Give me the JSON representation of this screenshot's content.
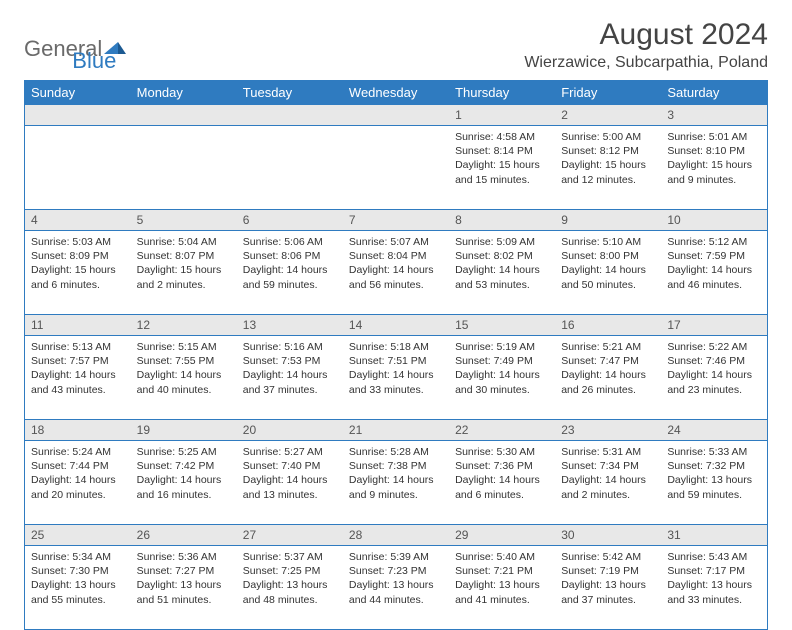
{
  "logo": {
    "general": "General",
    "blue": "Blue"
  },
  "title": "August 2024",
  "location": "Wierzawice, Subcarpathia, Poland",
  "colors": {
    "accent": "#2f7bc0",
    "header_bg": "#e8e8e8",
    "text": "#333333",
    "title_text": "#444444"
  },
  "day_headers": [
    "Sunday",
    "Monday",
    "Tuesday",
    "Wednesday",
    "Thursday",
    "Friday",
    "Saturday"
  ],
  "weeks": [
    {
      "nums": [
        "",
        "",
        "",
        "",
        "1",
        "2",
        "3"
      ],
      "cells": [
        {
          "sunrise": "",
          "sunset": "",
          "daylight": ""
        },
        {
          "sunrise": "",
          "sunset": "",
          "daylight": ""
        },
        {
          "sunrise": "",
          "sunset": "",
          "daylight": ""
        },
        {
          "sunrise": "",
          "sunset": "",
          "daylight": ""
        },
        {
          "sunrise": "Sunrise: 4:58 AM",
          "sunset": "Sunset: 8:14 PM",
          "daylight": "Daylight: 15 hours and 15 minutes."
        },
        {
          "sunrise": "Sunrise: 5:00 AM",
          "sunset": "Sunset: 8:12 PM",
          "daylight": "Daylight: 15 hours and 12 minutes."
        },
        {
          "sunrise": "Sunrise: 5:01 AM",
          "sunset": "Sunset: 8:10 PM",
          "daylight": "Daylight: 15 hours and 9 minutes."
        }
      ]
    },
    {
      "nums": [
        "4",
        "5",
        "6",
        "7",
        "8",
        "9",
        "10"
      ],
      "cells": [
        {
          "sunrise": "Sunrise: 5:03 AM",
          "sunset": "Sunset: 8:09 PM",
          "daylight": "Daylight: 15 hours and 6 minutes."
        },
        {
          "sunrise": "Sunrise: 5:04 AM",
          "sunset": "Sunset: 8:07 PM",
          "daylight": "Daylight: 15 hours and 2 minutes."
        },
        {
          "sunrise": "Sunrise: 5:06 AM",
          "sunset": "Sunset: 8:06 PM",
          "daylight": "Daylight: 14 hours and 59 minutes."
        },
        {
          "sunrise": "Sunrise: 5:07 AM",
          "sunset": "Sunset: 8:04 PM",
          "daylight": "Daylight: 14 hours and 56 minutes."
        },
        {
          "sunrise": "Sunrise: 5:09 AM",
          "sunset": "Sunset: 8:02 PM",
          "daylight": "Daylight: 14 hours and 53 minutes."
        },
        {
          "sunrise": "Sunrise: 5:10 AM",
          "sunset": "Sunset: 8:00 PM",
          "daylight": "Daylight: 14 hours and 50 minutes."
        },
        {
          "sunrise": "Sunrise: 5:12 AM",
          "sunset": "Sunset: 7:59 PM",
          "daylight": "Daylight: 14 hours and 46 minutes."
        }
      ]
    },
    {
      "nums": [
        "11",
        "12",
        "13",
        "14",
        "15",
        "16",
        "17"
      ],
      "cells": [
        {
          "sunrise": "Sunrise: 5:13 AM",
          "sunset": "Sunset: 7:57 PM",
          "daylight": "Daylight: 14 hours and 43 minutes."
        },
        {
          "sunrise": "Sunrise: 5:15 AM",
          "sunset": "Sunset: 7:55 PM",
          "daylight": "Daylight: 14 hours and 40 minutes."
        },
        {
          "sunrise": "Sunrise: 5:16 AM",
          "sunset": "Sunset: 7:53 PM",
          "daylight": "Daylight: 14 hours and 37 minutes."
        },
        {
          "sunrise": "Sunrise: 5:18 AM",
          "sunset": "Sunset: 7:51 PM",
          "daylight": "Daylight: 14 hours and 33 minutes."
        },
        {
          "sunrise": "Sunrise: 5:19 AM",
          "sunset": "Sunset: 7:49 PM",
          "daylight": "Daylight: 14 hours and 30 minutes."
        },
        {
          "sunrise": "Sunrise: 5:21 AM",
          "sunset": "Sunset: 7:47 PM",
          "daylight": "Daylight: 14 hours and 26 minutes."
        },
        {
          "sunrise": "Sunrise: 5:22 AM",
          "sunset": "Sunset: 7:46 PM",
          "daylight": "Daylight: 14 hours and 23 minutes."
        }
      ]
    },
    {
      "nums": [
        "18",
        "19",
        "20",
        "21",
        "22",
        "23",
        "24"
      ],
      "cells": [
        {
          "sunrise": "Sunrise: 5:24 AM",
          "sunset": "Sunset: 7:44 PM",
          "daylight": "Daylight: 14 hours and 20 minutes."
        },
        {
          "sunrise": "Sunrise: 5:25 AM",
          "sunset": "Sunset: 7:42 PM",
          "daylight": "Daylight: 14 hours and 16 minutes."
        },
        {
          "sunrise": "Sunrise: 5:27 AM",
          "sunset": "Sunset: 7:40 PM",
          "daylight": "Daylight: 14 hours and 13 minutes."
        },
        {
          "sunrise": "Sunrise: 5:28 AM",
          "sunset": "Sunset: 7:38 PM",
          "daylight": "Daylight: 14 hours and 9 minutes."
        },
        {
          "sunrise": "Sunrise: 5:30 AM",
          "sunset": "Sunset: 7:36 PM",
          "daylight": "Daylight: 14 hours and 6 minutes."
        },
        {
          "sunrise": "Sunrise: 5:31 AM",
          "sunset": "Sunset: 7:34 PM",
          "daylight": "Daylight: 14 hours and 2 minutes."
        },
        {
          "sunrise": "Sunrise: 5:33 AM",
          "sunset": "Sunset: 7:32 PM",
          "daylight": "Daylight: 13 hours and 59 minutes."
        }
      ]
    },
    {
      "nums": [
        "25",
        "26",
        "27",
        "28",
        "29",
        "30",
        "31"
      ],
      "cells": [
        {
          "sunrise": "Sunrise: 5:34 AM",
          "sunset": "Sunset: 7:30 PM",
          "daylight": "Daylight: 13 hours and 55 minutes."
        },
        {
          "sunrise": "Sunrise: 5:36 AM",
          "sunset": "Sunset: 7:27 PM",
          "daylight": "Daylight: 13 hours and 51 minutes."
        },
        {
          "sunrise": "Sunrise: 5:37 AM",
          "sunset": "Sunset: 7:25 PM",
          "daylight": "Daylight: 13 hours and 48 minutes."
        },
        {
          "sunrise": "Sunrise: 5:39 AM",
          "sunset": "Sunset: 7:23 PM",
          "daylight": "Daylight: 13 hours and 44 minutes."
        },
        {
          "sunrise": "Sunrise: 5:40 AM",
          "sunset": "Sunset: 7:21 PM",
          "daylight": "Daylight: 13 hours and 41 minutes."
        },
        {
          "sunrise": "Sunrise: 5:42 AM",
          "sunset": "Sunset: 7:19 PM",
          "daylight": "Daylight: 13 hours and 37 minutes."
        },
        {
          "sunrise": "Sunrise: 5:43 AM",
          "sunset": "Sunset: 7:17 PM",
          "daylight": "Daylight: 13 hours and 33 minutes."
        }
      ]
    }
  ]
}
